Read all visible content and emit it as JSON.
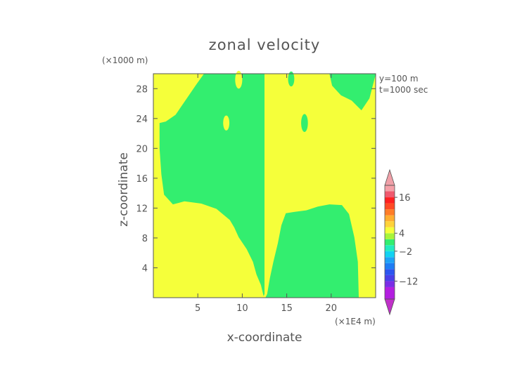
{
  "chart_data": {
    "type": "heatmap",
    "title": "zonal velocity",
    "xlabel": "x-coordinate",
    "ylabel": "z-coordinate",
    "x_units": "(×1E4 m)",
    "y_units": "(×1000 m)",
    "annotations": [
      "y=100 m",
      "t=1000 sec"
    ],
    "xlim": [
      0,
      25
    ],
    "ylim": [
      0,
      30
    ],
    "x_ticks": [
      {
        "value": 5,
        "label": "5"
      },
      {
        "value": 10,
        "label": "10"
      },
      {
        "value": 15,
        "label": "15"
      },
      {
        "value": 20,
        "label": "20"
      }
    ],
    "y_ticks": [
      {
        "value": 4,
        "label": "4"
      },
      {
        "value": 8,
        "label": "8"
      },
      {
        "value": 12,
        "label": "12"
      },
      {
        "value": 16,
        "label": "16"
      },
      {
        "value": 20,
        "label": "20"
      },
      {
        "value": 24,
        "label": "24"
      },
      {
        "value": 28,
        "label": "28"
      }
    ],
    "background_color": "#f5ff3a",
    "regions": [
      {
        "color": "#33ee6f",
        "points": [
          [
            12.5,
            30
          ],
          [
            12.5,
            0.5
          ],
          [
            12.4,
            0.2
          ],
          [
            12.1,
            1.7
          ],
          [
            11.6,
            3.1
          ],
          [
            11.2,
            4.8
          ],
          [
            10.5,
            6.5
          ],
          [
            9.6,
            8.1
          ],
          [
            9.1,
            9.4
          ],
          [
            8.6,
            10.4
          ],
          [
            7.1,
            11.9
          ],
          [
            5.4,
            12.6
          ],
          [
            3.5,
            12.9
          ],
          [
            2.2,
            12.5
          ],
          [
            1.2,
            13.8
          ],
          [
            0.9,
            16.5
          ],
          [
            0.7,
            20
          ],
          [
            0.7,
            23.4
          ],
          [
            1.4,
            23.6
          ],
          [
            2.5,
            24.5
          ],
          [
            3.7,
            26.6
          ],
          [
            4.8,
            28.5
          ],
          [
            5.7,
            30
          ]
        ]
      },
      {
        "color": "#33ee6f",
        "points": [
          [
            12.6,
            0
          ],
          [
            12.8,
            0.5
          ],
          [
            13.1,
            2.6
          ],
          [
            13.5,
            4.8
          ],
          [
            14.0,
            7.3
          ],
          [
            14.4,
            9.7
          ],
          [
            14.9,
            11.3
          ],
          [
            15.9,
            11.5
          ],
          [
            17.2,
            11.7
          ],
          [
            18.5,
            12.2
          ],
          [
            19.8,
            12.5
          ],
          [
            21.2,
            12.4
          ],
          [
            22.0,
            11.2
          ],
          [
            22.6,
            8.1
          ],
          [
            23.0,
            4.8
          ],
          [
            23.1,
            0
          ]
        ]
      },
      {
        "color": "#33ee6f",
        "points": [
          [
            19.8,
            30
          ],
          [
            20.1,
            28.4
          ],
          [
            21.1,
            27.1
          ],
          [
            22.3,
            26.4
          ],
          [
            23.4,
            25.1
          ],
          [
            24.3,
            26.7
          ],
          [
            25,
            29.9
          ],
          [
            25,
            30
          ]
        ]
      },
      {
        "color": "#f5ff3a",
        "ellipse": {
          "cx": 9.6,
          "cy": 29.2,
          "rx": 0.4,
          "ry": 1.2
        }
      },
      {
        "color": "#f5ff3a",
        "ellipse": {
          "cx": 8.2,
          "cy": 23.4,
          "rx": 0.35,
          "ry": 1.0
        }
      },
      {
        "color": "#33ee6f",
        "ellipse": {
          "cx": 15.5,
          "cy": 29.3,
          "rx": 0.35,
          "ry": 1.0
        }
      },
      {
        "color": "#33ee6f",
        "ellipse": {
          "cx": 17.0,
          "cy": 23.4,
          "rx": 0.38,
          "ry": 1.2
        }
      }
    ],
    "colorbar": {
      "vmin": -18,
      "vmax": 20,
      "bands": [
        {
          "from": -18,
          "to": -14,
          "color": "#b31ee0"
        },
        {
          "from": -14,
          "to": -12,
          "color": "#7a2de6"
        },
        {
          "from": -12,
          "to": -10,
          "color": "#4a3fe8"
        },
        {
          "from": -10,
          "to": -8,
          "color": "#2c55f0"
        },
        {
          "from": -8,
          "to": -6,
          "color": "#1f7df5"
        },
        {
          "from": -6,
          "to": -4,
          "color": "#1fa2f7"
        },
        {
          "from": -4,
          "to": -2,
          "color": "#12d2f2"
        },
        {
          "from": -2,
          "to": 0,
          "color": "#22ecc0"
        },
        {
          "from": 0,
          "to": 2,
          "color": "#33ee6f"
        },
        {
          "from": 2,
          "to": 4,
          "color": "#a8f53a"
        },
        {
          "from": 4,
          "to": 6,
          "color": "#f5ff3a"
        },
        {
          "from": 6,
          "to": 8,
          "color": "#ffd23a"
        },
        {
          "from": 8,
          "to": 10,
          "color": "#ffae30"
        },
        {
          "from": 10,
          "to": 12,
          "color": "#ff7d28"
        },
        {
          "from": 12,
          "to": 14,
          "color": "#ff4a25"
        },
        {
          "from": 14,
          "to": 16,
          "color": "#ff2020"
        },
        {
          "from": 16,
          "to": 18,
          "color": "#f05a6e"
        },
        {
          "from": 18,
          "to": 20,
          "color": "#f5a0a8"
        }
      ],
      "ticks": [
        {
          "value": 16,
          "label": "16"
        },
        {
          "value": 4,
          "label": "4"
        },
        {
          "value": -2,
          "label": "−2"
        },
        {
          "value": -12,
          "label": "−12"
        }
      ],
      "over_color": "#f0a0a8",
      "under_color": "#c030c8"
    },
    "grid": false,
    "legend": "right"
  }
}
